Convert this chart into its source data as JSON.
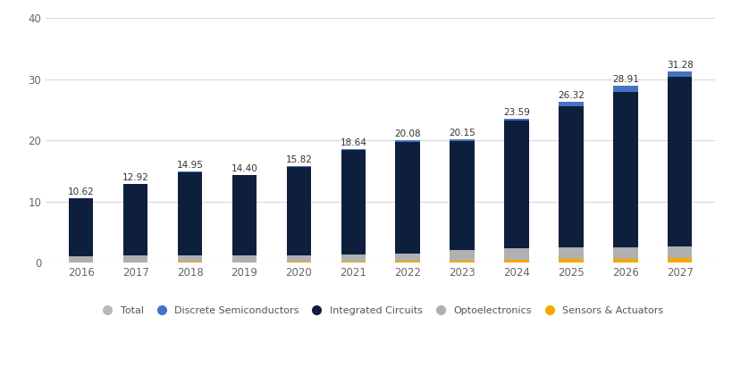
{
  "years": [
    2016,
    2017,
    2018,
    2019,
    2020,
    2021,
    2022,
    2023,
    2024,
    2025,
    2026,
    2027
  ],
  "totals": [
    10.62,
    12.92,
    14.95,
    14.4,
    15.82,
    18.64,
    20.08,
    20.15,
    23.59,
    26.32,
    28.91,
    31.28
  ],
  "sensors_actuators": [
    0.1,
    0.1,
    0.15,
    0.12,
    0.18,
    0.22,
    0.28,
    0.3,
    0.45,
    0.6,
    0.65,
    0.75
  ],
  "optoelectronics": [
    1.0,
    1.1,
    1.0,
    1.1,
    1.1,
    1.1,
    1.3,
    1.85,
    1.9,
    1.9,
    1.9,
    1.95
  ],
  "integrated_circuits": [
    9.42,
    11.62,
    13.65,
    13.08,
    14.44,
    17.12,
    18.2,
    17.7,
    20.84,
    23.02,
    25.36,
    27.68
  ],
  "discrete_semiconductors": [
    0.1,
    0.1,
    0.15,
    0.1,
    0.1,
    0.2,
    0.3,
    0.3,
    0.4,
    0.8,
    1.0,
    0.9
  ],
  "color_integrated_circuits": "#0d1f3c",
  "color_discrete_semiconductors": "#4472c4",
  "color_optoelectronics": "#b0b0b0",
  "color_sensors_actuators": "#f5a800",
  "color_total_marker": "#b8b8b8",
  "background_color": "#ffffff",
  "grid_color": "#d8d8d8",
  "ylim": [
    0,
    40
  ],
  "yticks": [
    0,
    10,
    20,
    30,
    40
  ],
  "bar_width": 0.45,
  "legend_fontsize": 8.0,
  "label_fontsize": 7.5,
  "tick_fontsize": 8.5
}
